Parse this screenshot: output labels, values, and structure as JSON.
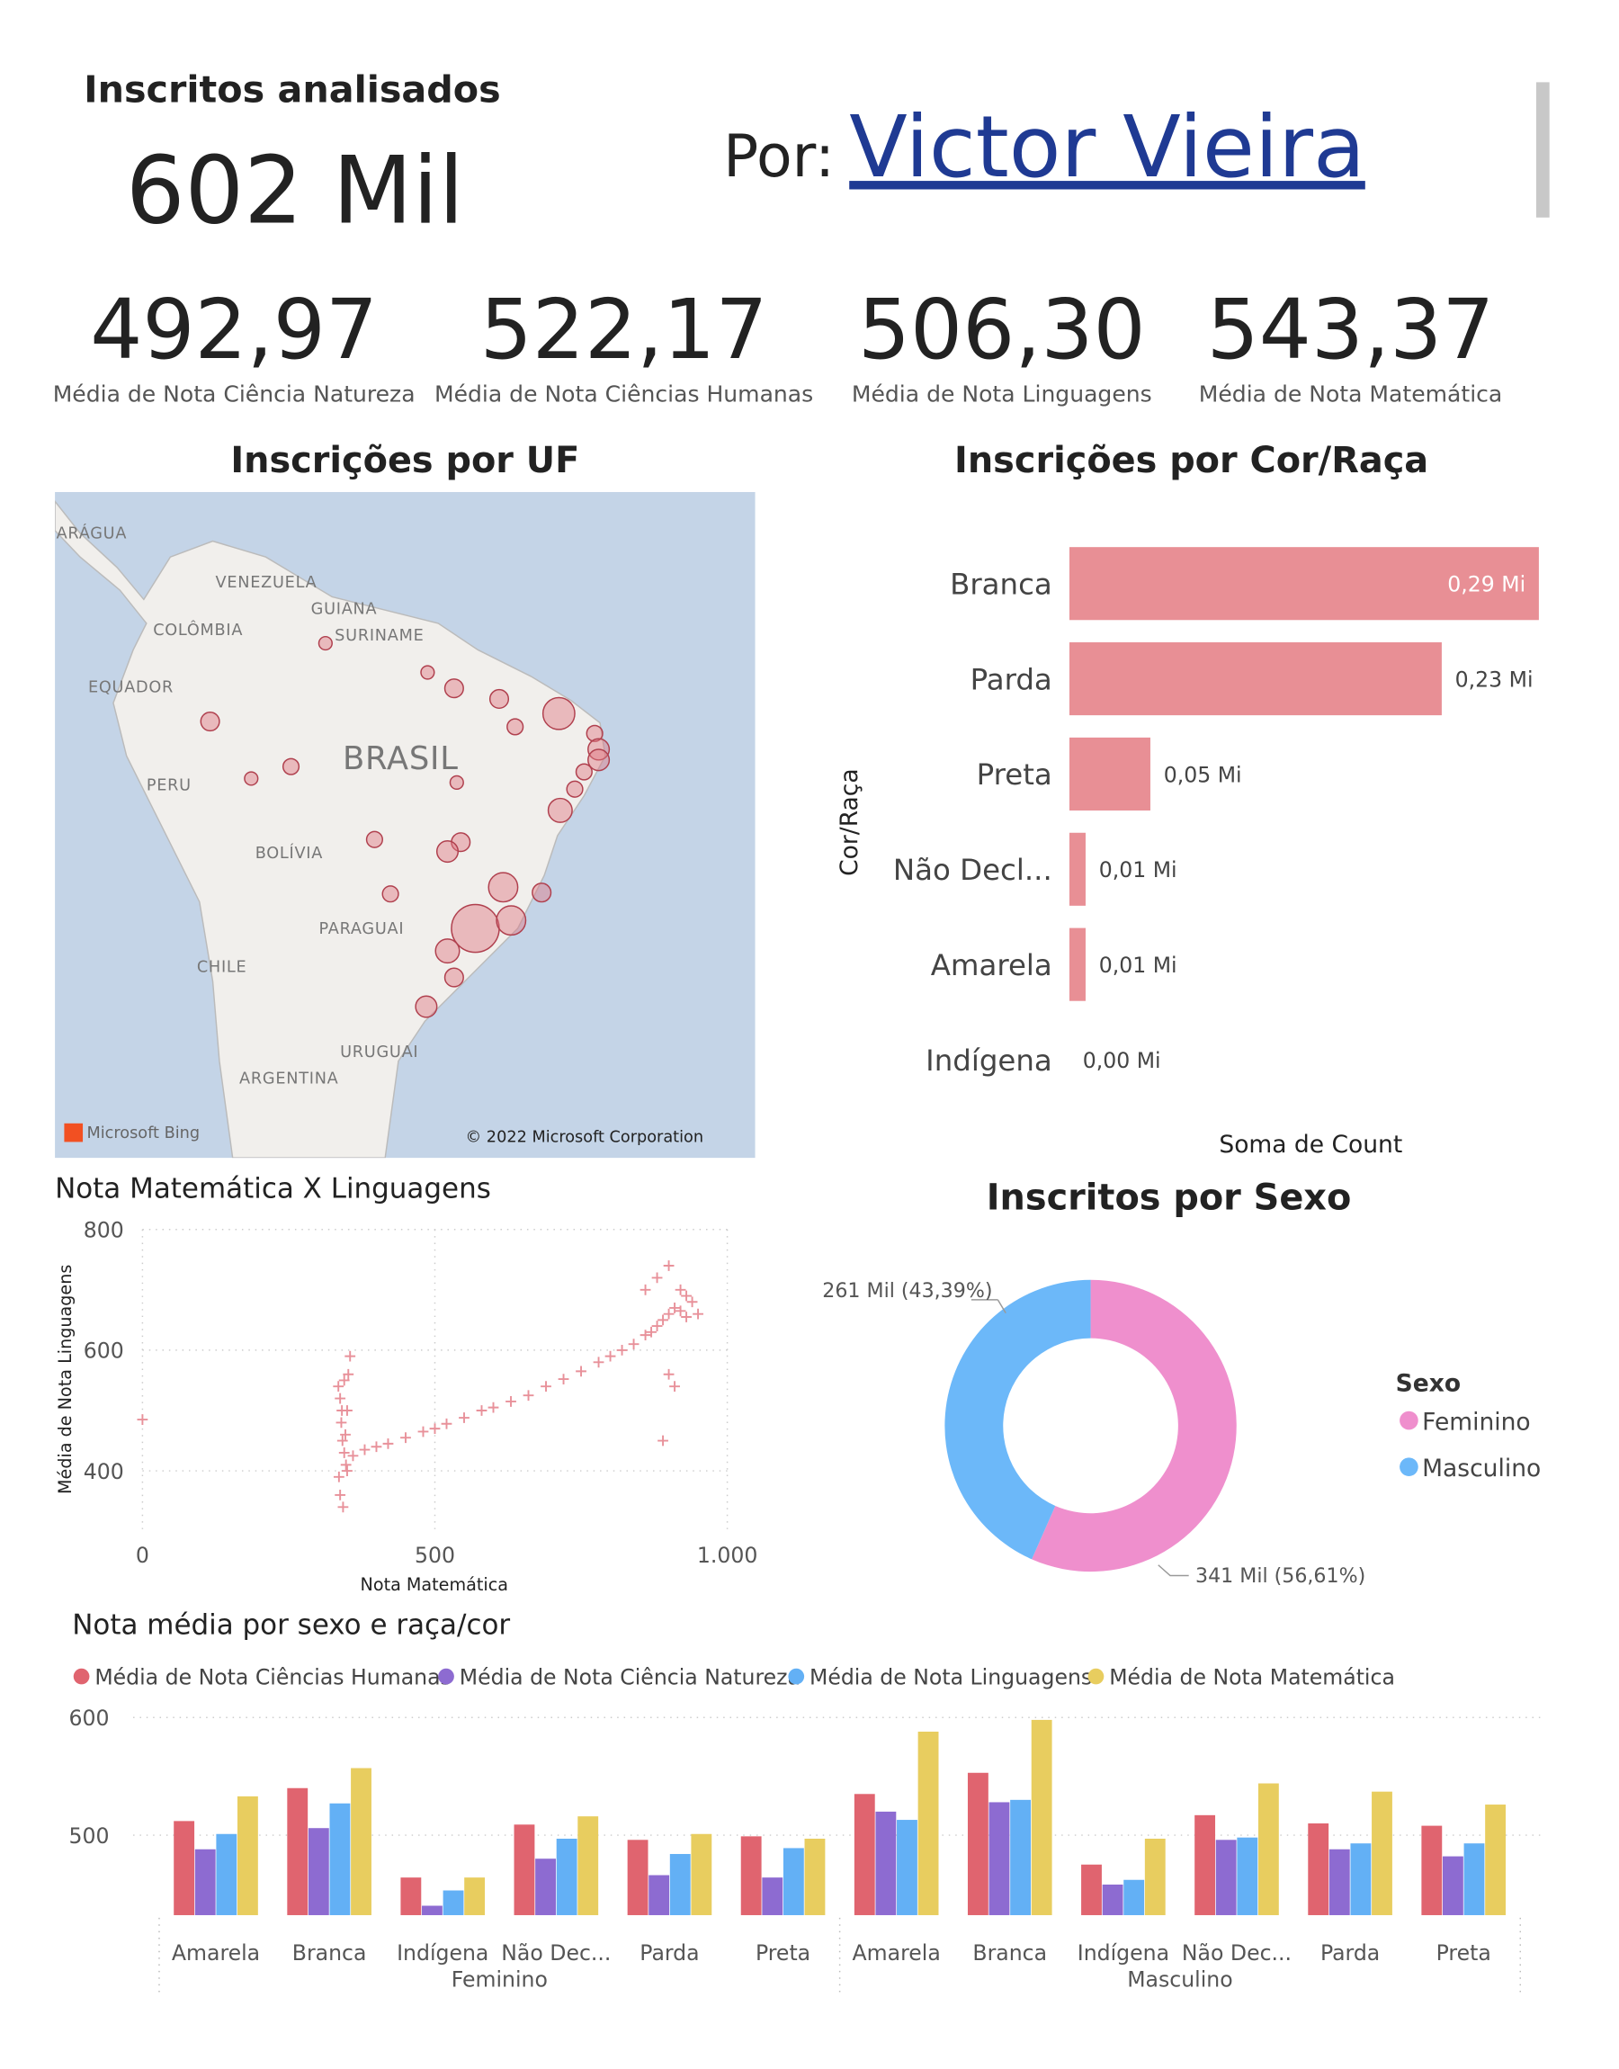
{
  "header": {
    "kpi_label": "Inscritos analisados",
    "kpi_value": "602 Mil",
    "author_prefix": "Por:",
    "author": "Victor Vieira"
  },
  "kpis": [
    {
      "value": "492,97",
      "label": "Média de Nota Ciência Natureza"
    },
    {
      "value": "522,17",
      "label": "Média de Nota Ciências Humanas"
    },
    {
      "value": "506,30",
      "label": "Média de Nota Linguagens"
    },
    {
      "value": "543,37",
      "label": "Média de Nota Matemática"
    }
  ],
  "map": {
    "title": "Inscrições por UF",
    "labels": [
      "ARÁGUA",
      "VENEZUELA",
      "GUIANA",
      "SURINAME",
      "COLÔMBIA",
      "EQUADOR",
      "BRASIL",
      "PERU",
      "BOLÍVIA",
      "PARAGUAI",
      "CHILE",
      "URUGUAI",
      "ARGENTINA"
    ],
    "attribution": "Microsoft Bing",
    "copyright": "© 2022 Microsoft Corporation"
  },
  "chart_data": [
    {
      "type": "bar",
      "title": "Inscrições por Cor/Raça",
      "categories": [
        "Branca",
        "Parda",
        "Preta",
        "Não Decl...",
        "Amarela",
        "Indígena"
      ],
      "values": [
        0.29,
        0.23,
        0.05,
        0.01,
        0.01,
        0.0
      ],
      "value_labels": [
        "0,29 Mi",
        "0,23 Mi",
        "0,05 Mi",
        "0,01 Mi",
        "0,01 Mi",
        "0,00 Mi"
      ],
      "color": "#e88f95",
      "xlabel": "Soma de Count",
      "ylabel": "Cor/Raça"
    },
    {
      "type": "scatter",
      "title": "Nota Matemática X Linguagens",
      "xlabel": "Nota Matemática",
      "ylabel": "Média de Nota Linguagens",
      "x": [
        0,
        335,
        338,
        340,
        342,
        345,
        348,
        350,
        352,
        355,
        338,
        343,
        347,
        336,
        341,
        360,
        380,
        400,
        420,
        450,
        480,
        500,
        520,
        550,
        580,
        600,
        630,
        660,
        690,
        720,
        750,
        780,
        800,
        820,
        840,
        860,
        870,
        880,
        890,
        900,
        910,
        920,
        930,
        940,
        950,
        860,
        880,
        900,
        920,
        930,
        890,
        900,
        910,
        345,
        350
      ],
      "y": [
        485,
        540,
        520,
        480,
        450,
        430,
        410,
        400,
        560,
        590,
        360,
        340,
        460,
        390,
        500,
        425,
        435,
        440,
        445,
        455,
        465,
        470,
        478,
        488,
        500,
        505,
        515,
        525,
        540,
        552,
        565,
        580,
        590,
        600,
        610,
        625,
        630,
        640,
        650,
        660,
        670,
        665,
        655,
        680,
        660,
        700,
        720,
        740,
        700,
        690,
        450,
        560,
        540,
        550,
        500
      ],
      "color": "#e8919a",
      "xlim": [
        0,
        1000
      ],
      "ylim": [
        300,
        800
      ],
      "xticks": [
        0,
        500,
        {
          "value": 1000,
          "label": "1.000"
        }
      ],
      "yticks": [
        400,
        600,
        800
      ],
      "grid": true
    },
    {
      "type": "donut",
      "title": "Inscritos por Sexo",
      "legend_title": "Sexo",
      "categories": [
        "Feminino",
        "Masculino"
      ],
      "values": [
        56.61,
        43.39
      ],
      "value_labels": [
        "341 Mil (56,61%)",
        "261 Mil (43,39%)"
      ],
      "colors": [
        "#ef8fcd",
        "#6cb8f9"
      ]
    },
    {
      "type": "grouped_bar",
      "title": "Nota média por sexo e raça/cor",
      "categories": [
        "Amarela",
        "Branca",
        "Indígena",
        "Não Dec...",
        "Parda",
        "Preta",
        "Amarela",
        "Branca",
        "Indígena",
        "Não Dec...",
        "Parda",
        "Preta"
      ],
      "groups": [
        "Feminino",
        "Masculino"
      ],
      "series": [
        {
          "name": "Média de Nota Ciências Humanas",
          "color": "#e0646f",
          "values": [
            512,
            540,
            464,
            509,
            496,
            499,
            535,
            553,
            475,
            517,
            510,
            508
          ]
        },
        {
          "name": "Média de Nota Ciência Natureza",
          "color": "#8d6bd1",
          "values": [
            488,
            506,
            440,
            480,
            466,
            464,
            520,
            528,
            458,
            496,
            488,
            482
          ]
        },
        {
          "name": "Média de Nota Linguagens",
          "color": "#63b0f5",
          "values": [
            501,
            527,
            453,
            497,
            484,
            489,
            513,
            530,
            462,
            498,
            493,
            493
          ]
        },
        {
          "name": "Média de Nota Matemática",
          "color": "#e8cd5f",
          "values": [
            533,
            557,
            464,
            516,
            501,
            497,
            588,
            598,
            497,
            544,
            537,
            526
          ]
        }
      ],
      "ylim": [
        432,
        600
      ],
      "yticks": [
        500,
        600
      ],
      "grid": true
    }
  ]
}
